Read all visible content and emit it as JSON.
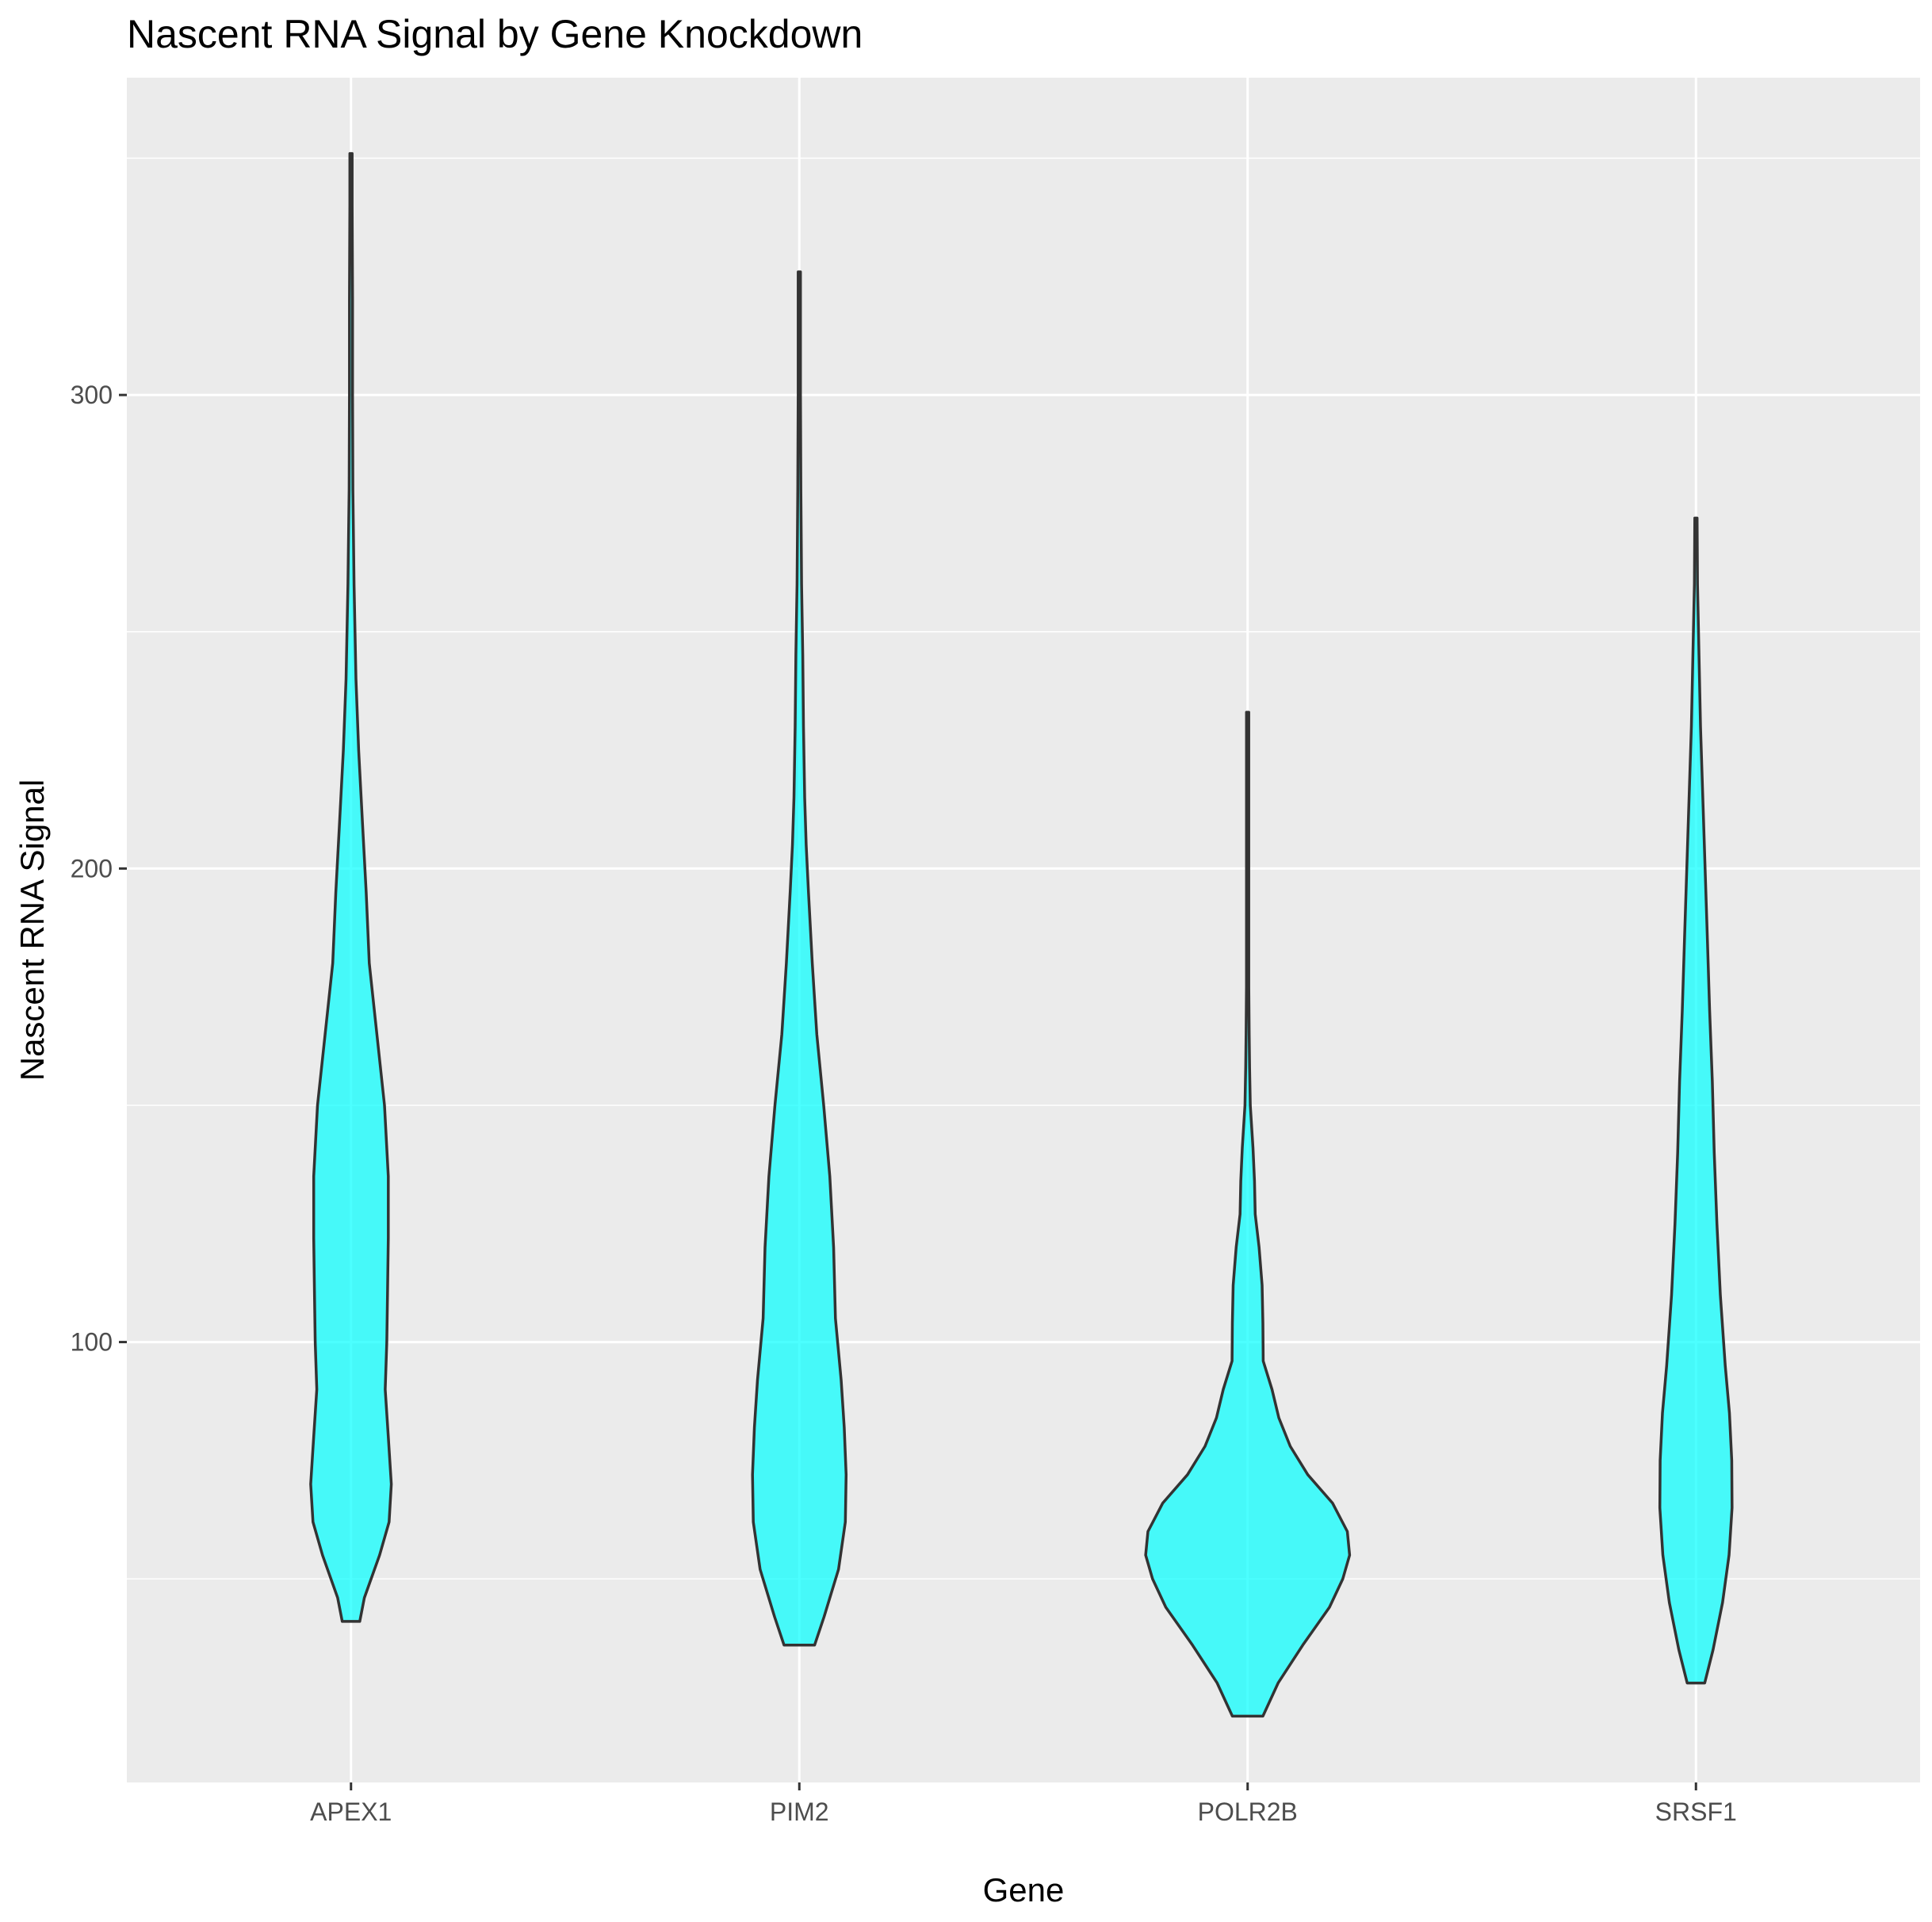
{
  "chart_data": {
    "type": "violin",
    "title": "Nascent RNA Signal by Gene Knockdown",
    "xlabel": "Gene",
    "ylabel": "Nascent RNA Signal",
    "categories": [
      "APEX1",
      "PIM2",
      "POLR2B",
      "SRSF1"
    ],
    "y_ticks": [
      100,
      200,
      300
    ],
    "ylim": [
      7,
      367
    ],
    "grid": true,
    "fill_color": "#00FFFF",
    "fill_opacity": 0.7,
    "outline_color": "#333333",
    "panel_color": "#EBEBEB",
    "violins": [
      {
        "category": "APEX1",
        "min": 41,
        "max": 351,
        "profile": [
          [
            41,
            0.023
          ],
          [
            46,
            0.035
          ],
          [
            55,
            0.075
          ],
          [
            62,
            0.1
          ],
          [
            70,
            0.106
          ],
          [
            80,
            0.098
          ],
          [
            90,
            0.09
          ],
          [
            100,
            0.094
          ],
          [
            110,
            0.096
          ],
          [
            122,
            0.098
          ],
          [
            135,
            0.098
          ],
          [
            150,
            0.088
          ],
          [
            165,
            0.068
          ],
          [
            180,
            0.048
          ],
          [
            195,
            0.04
          ],
          [
            210,
            0.03
          ],
          [
            225,
            0.02
          ],
          [
            240,
            0.013
          ],
          [
            260,
            0.008
          ],
          [
            280,
            0.005
          ],
          [
            300,
            0.004
          ],
          [
            320,
            0.004
          ],
          [
            340,
            0.003
          ],
          [
            351,
            0.003
          ]
        ]
      },
      {
        "category": "PIM2",
        "min": 36,
        "max": 326,
        "profile": [
          [
            36,
            0.04
          ],
          [
            42,
            0.065
          ],
          [
            52,
            0.103
          ],
          [
            62,
            0.121
          ],
          [
            72,
            0.123
          ],
          [
            82,
            0.118
          ],
          [
            92,
            0.11
          ],
          [
            105,
            0.095
          ],
          [
            120,
            0.09
          ],
          [
            135,
            0.08
          ],
          [
            150,
            0.064
          ],
          [
            165,
            0.046
          ],
          [
            180,
            0.034
          ],
          [
            195,
            0.024
          ],
          [
            205,
            0.018
          ],
          [
            215,
            0.014
          ],
          [
            230,
            0.011
          ],
          [
            245,
            0.009
          ],
          [
            260,
            0.006
          ],
          [
            280,
            0.004
          ],
          [
            300,
            0.003
          ],
          [
            315,
            0.003
          ],
          [
            326,
            0.003
          ]
        ]
      },
      {
        "category": "POLR2B",
        "min": 21,
        "max": 233,
        "profile": [
          [
            21,
            0.04
          ],
          [
            28,
            0.08
          ],
          [
            36,
            0.145
          ],
          [
            44,
            0.215
          ],
          [
            50,
            0.25
          ],
          [
            55,
            0.268
          ],
          [
            60,
            0.262
          ],
          [
            66,
            0.223
          ],
          [
            72,
            0.158
          ],
          [
            78,
            0.112
          ],
          [
            84,
            0.082
          ],
          [
            90,
            0.064
          ],
          [
            96,
            0.041
          ],
          [
            104,
            0.04
          ],
          [
            112,
            0.038
          ],
          [
            120,
            0.03
          ],
          [
            127,
            0.02
          ],
          [
            134,
            0.018
          ],
          [
            141,
            0.014
          ],
          [
            150,
            0.007
          ],
          [
            158,
            0.005
          ],
          [
            165,
            0.004
          ],
          [
            175,
            0.003
          ],
          [
            200,
            0.003
          ],
          [
            220,
            0.003
          ],
          [
            233,
            0.003
          ]
        ]
      },
      {
        "category": "SRSF1",
        "min": 28,
        "max": 274,
        "profile": [
          [
            28,
            0.023
          ],
          [
            35,
            0.045
          ],
          [
            45,
            0.07
          ],
          [
            55,
            0.087
          ],
          [
            65,
            0.095
          ],
          [
            75,
            0.094
          ],
          [
            85,
            0.088
          ],
          [
            95,
            0.077
          ],
          [
            110,
            0.064
          ],
          [
            125,
            0.055
          ],
          [
            140,
            0.048
          ],
          [
            155,
            0.043
          ],
          [
            170,
            0.036
          ],
          [
            185,
            0.03
          ],
          [
            200,
            0.024
          ],
          [
            215,
            0.018
          ],
          [
            230,
            0.012
          ],
          [
            245,
            0.008
          ],
          [
            260,
            0.004
          ],
          [
            274,
            0.003
          ]
        ]
      }
    ]
  }
}
